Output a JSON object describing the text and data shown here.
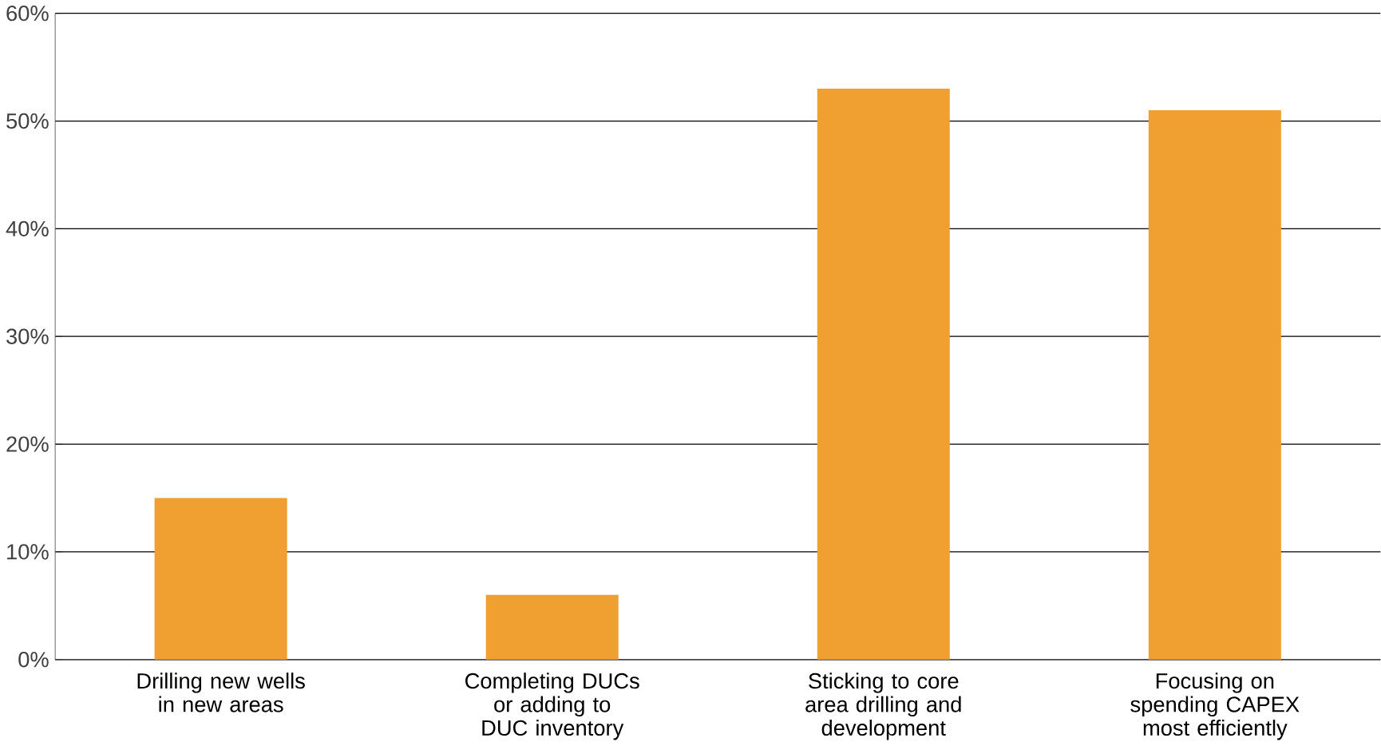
{
  "chart_data": {
    "type": "bar",
    "categories": [
      "Drilling new wells in new areas",
      "Completing DUCs or adding to DUC inventory",
      "Sticking to core area drilling and development",
      "Focusing on spending CAPEX most efficiently"
    ],
    "values": [
      15,
      6,
      53,
      51
    ],
    "color": "#f0a030",
    "ylim": [
      0,
      60
    ],
    "yticks": [
      {
        "value": 0,
        "label": "0%"
      },
      {
        "value": 10,
        "label": "10%"
      },
      {
        "value": 20,
        "label": "20%"
      },
      {
        "value": 30,
        "label": "30%"
      },
      {
        "value": 40,
        "label": "40%"
      },
      {
        "value": 50,
        "label": "50%"
      },
      {
        "value": 60,
        "label": "60%"
      }
    ],
    "grid": "y"
  }
}
